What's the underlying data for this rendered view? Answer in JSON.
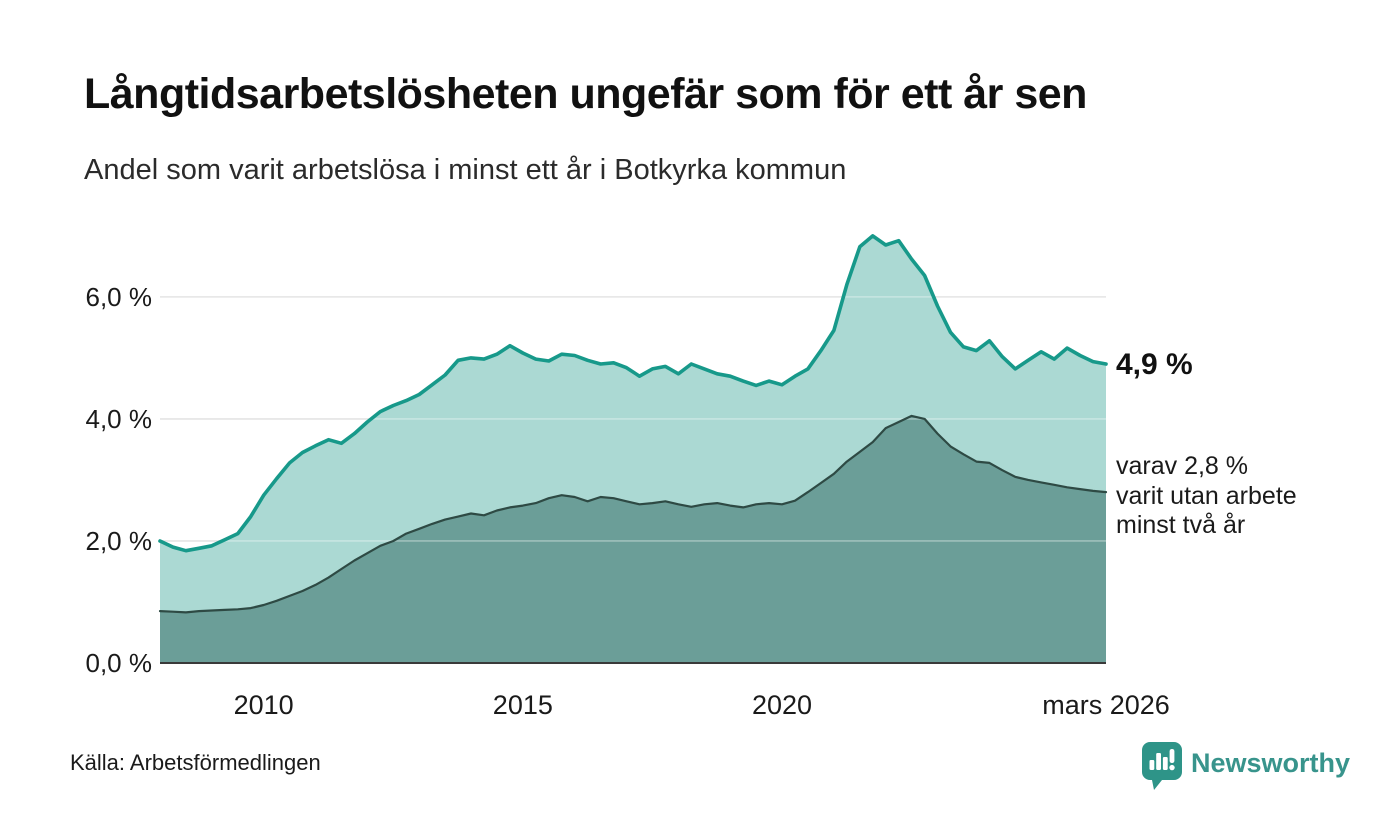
{
  "header": {
    "title": "Långtidsarbetslösheten ungefär som för ett år sen",
    "subtitle": "Andel som varit arbetslösa i minst ett år i Botkyrka kommun"
  },
  "annotations": {
    "end_value_label": "4,9 %",
    "secondary_lines": [
      "varav 2,8 %",
      "varit utan arbete",
      "minst två år"
    ]
  },
  "footer": {
    "source": "Källa: Arbetsförmedlingen",
    "brand_name": "Newsworthy"
  },
  "colors": {
    "accent_teal_line": "#17998a",
    "light_area_fill": "#abd9d3",
    "dark_area_fill": "#6b9e98",
    "dark_area_stroke": "#2e4a44",
    "gridline": "#d9d9d9",
    "baseline": "#3a3a3a",
    "brand_teal": "#38948c",
    "text": "#1a1a1a"
  },
  "chart_data": {
    "type": "area",
    "title": "Långtidsarbetslösheten ungefär som för ett år sen",
    "subtitle": "Andel som varit arbetslösa i minst ett år i Botkyrka kommun",
    "unit": "%",
    "xlim": [
      2008,
      2026.25
    ],
    "ylim": [
      0,
      7.26
    ],
    "grid": true,
    "legend": "none (direct labels at line ends)",
    "x_ticks": [
      {
        "label": "2010",
        "value": 2010
      },
      {
        "label": "2015",
        "value": 2015
      },
      {
        "label": "2020",
        "value": 2020
      },
      {
        "label": "mars 2026",
        "value": 2026.25
      }
    ],
    "y_ticks": [
      {
        "label": "0,0 %",
        "value": 0
      },
      {
        "label": "2,0 %",
        "value": 2
      },
      {
        "label": "4,0 %",
        "value": 4
      },
      {
        "label": "6,0 %",
        "value": 6
      }
    ],
    "x": [
      2008.0,
      2008.25,
      2008.5,
      2008.75,
      2009.0,
      2009.25,
      2009.5,
      2009.75,
      2010.0,
      2010.25,
      2010.5,
      2010.75,
      2011.0,
      2011.25,
      2011.5,
      2011.75,
      2012.0,
      2012.25,
      2012.5,
      2012.75,
      2013.0,
      2013.25,
      2013.5,
      2013.75,
      2014.0,
      2014.25,
      2014.5,
      2014.75,
      2015.0,
      2015.25,
      2015.5,
      2015.75,
      2016.0,
      2016.25,
      2016.5,
      2016.75,
      2017.0,
      2017.25,
      2017.5,
      2017.75,
      2018.0,
      2018.25,
      2018.5,
      2018.75,
      2019.0,
      2019.25,
      2019.5,
      2019.75,
      2020.0,
      2020.25,
      2020.5,
      2020.75,
      2021.0,
      2021.25,
      2021.5,
      2021.75,
      2022.0,
      2022.25,
      2022.5,
      2022.75,
      2023.0,
      2023.25,
      2023.5,
      2023.75,
      2024.0,
      2024.25,
      2024.5,
      2024.75,
      2025.0,
      2025.25,
      2025.5,
      2025.75,
      2026.0,
      2026.25
    ],
    "series": [
      {
        "name": "Andel som varit arbetslösa minst ett år",
        "end_value": 4.9,
        "values": [
          2.0,
          1.9,
          1.84,
          1.88,
          1.92,
          2.02,
          2.12,
          2.4,
          2.75,
          3.02,
          3.28,
          3.45,
          3.56,
          3.66,
          3.6,
          3.76,
          3.95,
          4.12,
          4.22,
          4.3,
          4.4,
          4.56,
          4.72,
          4.96,
          5.0,
          4.98,
          5.06,
          5.2,
          5.08,
          4.98,
          4.95,
          5.06,
          5.04,
          4.96,
          4.9,
          4.92,
          4.84,
          4.7,
          4.82,
          4.86,
          4.74,
          4.9,
          4.82,
          4.74,
          4.7,
          4.62,
          4.55,
          4.62,
          4.56,
          4.7,
          4.82,
          5.12,
          5.45,
          6.2,
          6.82,
          7.0,
          6.85,
          6.92,
          6.62,
          6.35,
          5.85,
          5.42,
          5.18,
          5.12,
          5.28,
          5.02,
          4.82,
          4.96,
          5.1,
          4.98,
          5.16,
          5.04,
          4.94,
          4.9
        ]
      },
      {
        "name": "varav varit utan arbete minst två år",
        "end_value": 2.8,
        "values": [
          0.85,
          0.84,
          0.83,
          0.85,
          0.86,
          0.87,
          0.88,
          0.9,
          0.95,
          1.02,
          1.1,
          1.18,
          1.28,
          1.4,
          1.54,
          1.68,
          1.8,
          1.92,
          2.0,
          2.12,
          2.2,
          2.28,
          2.35,
          2.4,
          2.45,
          2.42,
          2.5,
          2.55,
          2.58,
          2.62,
          2.7,
          2.75,
          2.72,
          2.65,
          2.72,
          2.7,
          2.65,
          2.6,
          2.62,
          2.65,
          2.6,
          2.56,
          2.6,
          2.62,
          2.58,
          2.55,
          2.6,
          2.62,
          2.6,
          2.66,
          2.8,
          2.95,
          3.1,
          3.3,
          3.46,
          3.62,
          3.85,
          3.95,
          4.05,
          4.0,
          3.76,
          3.55,
          3.42,
          3.3,
          3.28,
          3.16,
          3.05,
          3.0,
          2.96,
          2.92,
          2.88,
          2.85,
          2.82,
          2.8
        ]
      }
    ]
  }
}
